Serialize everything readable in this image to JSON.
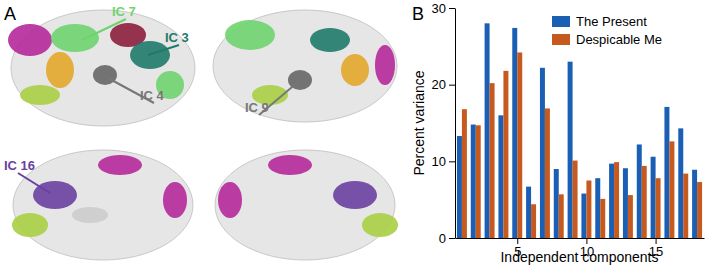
{
  "panel_a": {
    "label": "A",
    "annotations": [
      "IC 7",
      "IC 3",
      "IC 4",
      "IC 9",
      "IC 16"
    ]
  },
  "chart_data": {
    "type": "bar",
    "title": "B",
    "x_label": "Independent components",
    "y_label": "Percent variance",
    "x": [
      1,
      2,
      3,
      4,
      5,
      6,
      7,
      8,
      9,
      10,
      11,
      12,
      13,
      14,
      15,
      16,
      17,
      18
    ],
    "series": [
      {
        "name": "The Present",
        "color": "#1a5fb4",
        "values": [
          13.3,
          14.8,
          28,
          16,
          27.4,
          6.7,
          22.2,
          9,
          23,
          5.8,
          7.8,
          9.7,
          9.1,
          12.2,
          10.6,
          17.1,
          14.3,
          8.9
        ]
      },
      {
        "name": "Despicable Me",
        "color": "#c65a1e",
        "values": [
          16.8,
          14.7,
          20.2,
          21.8,
          24.2,
          4.4,
          16.9,
          5.7,
          10.1,
          7.5,
          5.1,
          9.9,
          5.6,
          9.4,
          7.8,
          12.6,
          8.4,
          7.3
        ]
      }
    ],
    "xlim": [
      0.5,
      18.5
    ],
    "xticks": [
      5,
      10,
      15
    ],
    "ylim": [
      0,
      30
    ],
    "yticks": [
      0,
      10,
      20,
      30
    ],
    "legend": "upper right"
  }
}
